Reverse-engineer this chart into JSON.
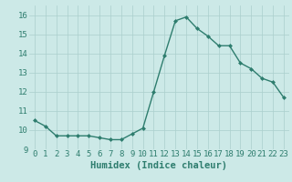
{
  "x": [
    0,
    1,
    2,
    3,
    4,
    5,
    6,
    7,
    8,
    9,
    10,
    11,
    12,
    13,
    14,
    15,
    16,
    17,
    18,
    19,
    20,
    21,
    22,
    23
  ],
  "y": [
    10.5,
    10.2,
    9.7,
    9.7,
    9.7,
    9.7,
    9.6,
    9.5,
    9.5,
    9.8,
    10.1,
    12.0,
    13.9,
    15.7,
    15.9,
    15.3,
    14.9,
    14.4,
    14.4,
    13.5,
    13.2,
    12.7,
    12.5,
    11.7
  ],
  "line_color": "#2e7d6e",
  "marker": "D",
  "marker_size": 2.0,
  "bg_color": "#cce9e7",
  "grid_color": "#aacfcc",
  "xlabel": "Humidex (Indice chaleur)",
  "xlim": [
    -0.5,
    23.5
  ],
  "ylim": [
    9.0,
    16.5
  ],
  "yticks": [
    9,
    10,
    11,
    12,
    13,
    14,
    15,
    16
  ],
  "xticks": [
    0,
    1,
    2,
    3,
    4,
    5,
    6,
    7,
    8,
    9,
    10,
    11,
    12,
    13,
    14,
    15,
    16,
    17,
    18,
    19,
    20,
    21,
    22,
    23
  ],
  "tick_color": "#2e7d6e",
  "xlabel_fontsize": 7.5,
  "tick_fontsize": 6.5,
  "line_width": 1.0
}
